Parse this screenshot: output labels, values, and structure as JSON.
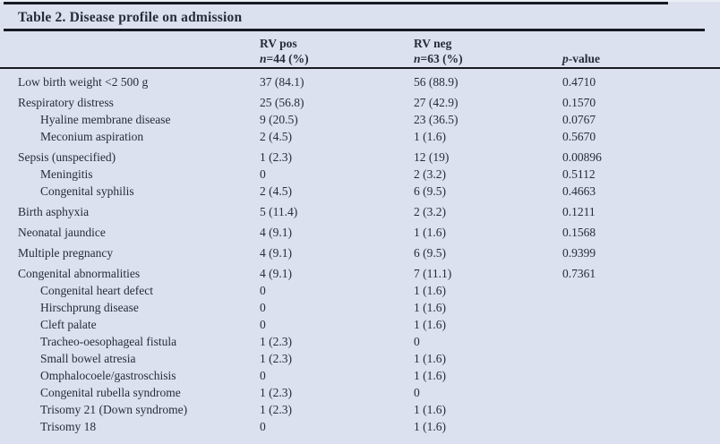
{
  "title": "Table 2. Disease profile on admission",
  "header": {
    "rv_pos": {
      "line1": "RV pos",
      "italic": "n",
      "rest": "=44 (%)"
    },
    "rv_neg": {
      "line1": "RV neg",
      "italic": "n",
      "rest": "=63 (%)"
    },
    "p": {
      "italic": "p",
      "rest": "-value"
    }
  },
  "colors": {
    "background": "#dbe1ee",
    "text": "#242e3a",
    "rule": "#161b22"
  },
  "rows": [
    {
      "label": "Low birth weight <2 500 g",
      "indent": false,
      "group_start": true,
      "rv_pos": "37 (84.1)",
      "rv_neg": "56 (88.9)",
      "p": "0.4710"
    },
    {
      "label": "Respiratory distress",
      "indent": false,
      "group_start": true,
      "rv_pos": "25 (56.8)",
      "rv_neg": "27 (42.9)",
      "p": "0.1570"
    },
    {
      "label": "Hyaline membrane disease",
      "indent": true,
      "group_start": false,
      "rv_pos": "9 (20.5)",
      "rv_neg": "23 (36.5)",
      "p": "0.0767"
    },
    {
      "label": "Meconium aspiration",
      "indent": true,
      "group_start": false,
      "rv_pos": "2 (4.5)",
      "rv_neg": "1 (1.6)",
      "p": "0.5670"
    },
    {
      "label": "Sepsis (unspecified)",
      "indent": false,
      "group_start": true,
      "rv_pos": "1 (2.3)",
      "rv_neg": "12 (19)",
      "p": "0.00896"
    },
    {
      "label": "Meningitis",
      "indent": true,
      "group_start": false,
      "rv_pos": "0",
      "rv_neg": "2 (3.2)",
      "p": "0.5112"
    },
    {
      "label": "Congenital syphilis",
      "indent": true,
      "group_start": false,
      "rv_pos": "2 (4.5)",
      "rv_neg": "6 (9.5)",
      "p": "0.4663"
    },
    {
      "label": "Birth asphyxia",
      "indent": false,
      "group_start": true,
      "rv_pos": "5 (11.4)",
      "rv_neg": "2 (3.2)",
      "p": "0.1211"
    },
    {
      "label": "Neonatal jaundice",
      "indent": false,
      "group_start": true,
      "rv_pos": "4 (9.1)",
      "rv_neg": "1 (1.6)",
      "p": "0.1568"
    },
    {
      "label": "Multiple pregnancy",
      "indent": false,
      "group_start": true,
      "rv_pos": "4 (9.1)",
      "rv_neg": "6 (9.5)",
      "p": "0.9399"
    },
    {
      "label": "Congenital abnormalities",
      "indent": false,
      "group_start": true,
      "rv_pos": "4 (9.1)",
      "rv_neg": "7 (11.1)",
      "p": "0.7361"
    },
    {
      "label": "Congenital heart defect",
      "indent": true,
      "group_start": false,
      "rv_pos": "0",
      "rv_neg": "1 (1.6)",
      "p": ""
    },
    {
      "label": "Hirschprung disease",
      "indent": true,
      "group_start": false,
      "rv_pos": "0",
      "rv_neg": "1 (1.6)",
      "p": ""
    },
    {
      "label": "Cleft palate",
      "indent": true,
      "group_start": false,
      "rv_pos": "0",
      "rv_neg": "1 (1.6)",
      "p": ""
    },
    {
      "label": "Tracheo-oesophageal fistula",
      "indent": true,
      "group_start": false,
      "rv_pos": "1 (2.3)",
      "rv_neg": "0",
      "p": ""
    },
    {
      "label": "Small bowel atresia",
      "indent": true,
      "group_start": false,
      "rv_pos": "1 (2.3)",
      "rv_neg": "1 (1.6)",
      "p": ""
    },
    {
      "label": "Omphalocoele/gastroschisis",
      "indent": true,
      "group_start": false,
      "rv_pos": "0",
      "rv_neg": "1 (1.6)",
      "p": ""
    },
    {
      "label": "Congenital rubella syndrome",
      "indent": true,
      "group_start": false,
      "rv_pos": "1 (2.3)",
      "rv_neg": "0",
      "p": ""
    },
    {
      "label": "Trisomy 21 (Down syndrome)",
      "indent": true,
      "group_start": false,
      "rv_pos": "1 (2.3)",
      "rv_neg": "1 (1.6)",
      "p": ""
    },
    {
      "label": "Trisomy 18",
      "indent": true,
      "group_start": false,
      "rv_pos": "0",
      "rv_neg": "1 (1.6)",
      "p": ""
    }
  ]
}
